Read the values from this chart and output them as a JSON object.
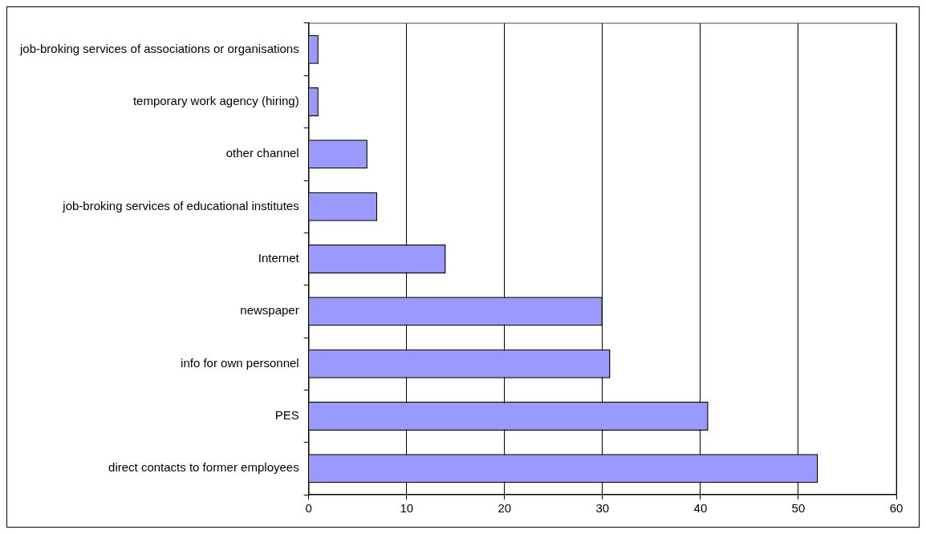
{
  "chart_data": {
    "type": "bar",
    "orientation": "horizontal",
    "categories": [
      "job-broking services of associations or organisations",
      "temporary work agency (hiring)",
      "other channel",
      "job-broking services of educational institutes",
      "Internet",
      "newspaper",
      "info for own personnel",
      "PES",
      "direct contacts to former employees"
    ],
    "values": [
      1,
      1,
      6,
      7,
      14,
      30,
      30.8,
      40.8,
      52
    ],
    "color": "#9999ff",
    "xlim": [
      0,
      60
    ],
    "xticks": [
      0,
      10,
      20,
      30,
      40,
      50,
      60
    ],
    "grid": "x"
  }
}
